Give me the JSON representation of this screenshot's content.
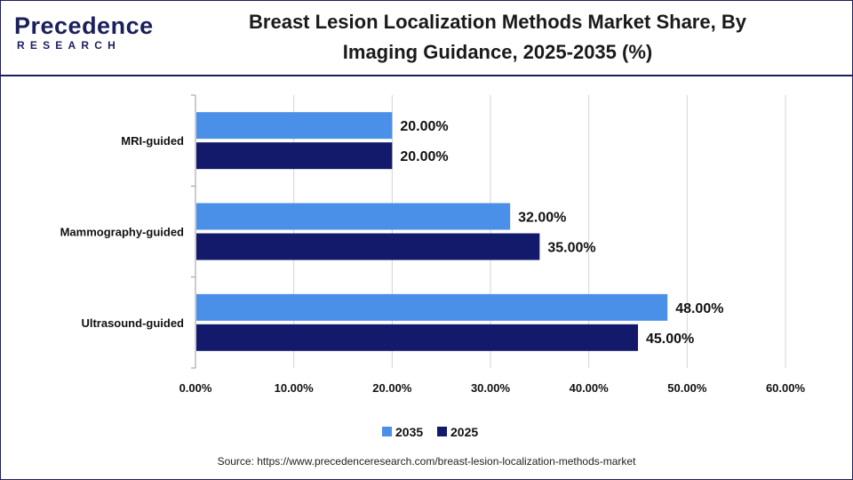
{
  "header": {
    "logo_word": "Precedence",
    "logo_sub": "RESEARCH",
    "title_line1": "Breast Lesion Localization Methods Market Share, By",
    "title_line2": "Imaging Guidance, 2025-2035 (%)"
  },
  "colors": {
    "series_2035": "#4a90e8",
    "series_2025": "#141a6b",
    "grid": "#d4d4d4",
    "axis": "#9a9a9a",
    "brand": "#1b1f5c"
  },
  "chart_data": {
    "type": "bar",
    "orientation": "horizontal",
    "categories": [
      "MRI-guided",
      "Mammography-guided",
      "Ultrasound-guided"
    ],
    "series": [
      {
        "name": "2035",
        "values": [
          20.0,
          32.0,
          48.0
        ],
        "labels": [
          "20.00%",
          "32.00%",
          "48.00%"
        ]
      },
      {
        "name": "2025",
        "values": [
          20.0,
          35.0,
          45.0
        ],
        "labels": [
          "20.00%",
          "35.00%",
          "45.00%"
        ]
      }
    ],
    "xlim": [
      0,
      60
    ],
    "xticks": [
      "0.00%",
      "10.00%",
      "20.00%",
      "30.00%",
      "40.00%",
      "50.00%",
      "60.00%"
    ],
    "grid": true,
    "legend_position": "bottom-center"
  },
  "footer": {
    "source": "Source: https://www.precedenceresearch.com/breast-lesion-localization-methods-market"
  }
}
